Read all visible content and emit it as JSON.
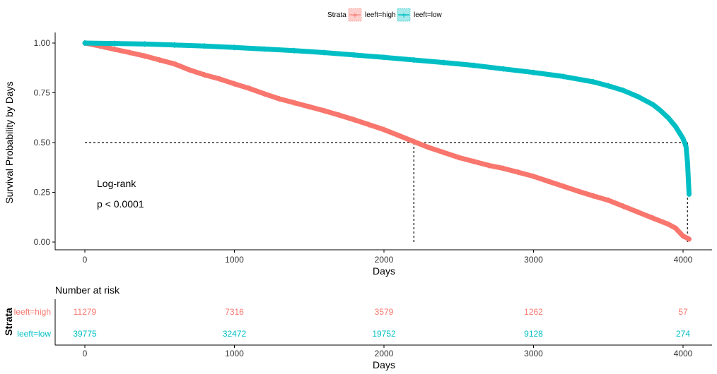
{
  "chart_data": [
    {
      "type": "line",
      "subtype": "kaplan-meier",
      "title": "",
      "xlabel": "Days",
      "ylabel": "Survival Probability by Days",
      "xlim": [
        0,
        4000
      ],
      "ylim": [
        0,
        1
      ],
      "xticks": [
        "0",
        "1000",
        "2000",
        "3000",
        "4000"
      ],
      "yticks": [
        "0.00",
        "0.25",
        "0.50",
        "0.75",
        "1.00"
      ],
      "legend": {
        "title": "Strata",
        "position": "top",
        "entries": [
          "leeft=high",
          "leeft=low"
        ]
      },
      "colors": {
        "high": "#F8766D",
        "low": "#00BFC4"
      },
      "annotations": [
        "Log-rank",
        "p < 0.0001"
      ],
      "median_line": {
        "y": 0.5,
        "median_high_days": 2200,
        "median_low_days": 4030
      },
      "series": [
        {
          "name": "leeft=high",
          "x": [
            0,
            100,
            200,
            300,
            400,
            500,
            600,
            700,
            800,
            900,
            1000,
            1100,
            1200,
            1300,
            1400,
            1500,
            1600,
            1700,
            1800,
            1900,
            2000,
            2100,
            2200,
            2300,
            2400,
            2500,
            2600,
            2700,
            2800,
            2900,
            3000,
            3100,
            3200,
            3300,
            3400,
            3500,
            3600,
            3700,
            3800,
            3900,
            3950,
            4000,
            4040
          ],
          "values": [
            1.0,
            0.985,
            0.968,
            0.952,
            0.935,
            0.915,
            0.895,
            0.865,
            0.84,
            0.82,
            0.795,
            0.772,
            0.745,
            0.72,
            0.7,
            0.68,
            0.66,
            0.638,
            0.615,
            0.59,
            0.565,
            0.535,
            0.505,
            0.475,
            0.45,
            0.425,
            0.405,
            0.385,
            0.37,
            0.35,
            0.33,
            0.305,
            0.28,
            0.255,
            0.232,
            0.21,
            0.18,
            0.15,
            0.12,
            0.09,
            0.07,
            0.03,
            0.015
          ]
        },
        {
          "name": "leeft=low",
          "x": [
            0,
            200,
            400,
            600,
            800,
            1000,
            1200,
            1400,
            1600,
            1800,
            2000,
            2200,
            2400,
            2600,
            2800,
            3000,
            3200,
            3400,
            3500,
            3600,
            3700,
            3800,
            3850,
            3900,
            3950,
            4000,
            4020,
            4030,
            4040
          ],
          "values": [
            1.0,
            0.998,
            0.995,
            0.99,
            0.985,
            0.978,
            0.97,
            0.962,
            0.952,
            0.94,
            0.928,
            0.915,
            0.902,
            0.888,
            0.87,
            0.852,
            0.832,
            0.805,
            0.785,
            0.762,
            0.73,
            0.69,
            0.66,
            0.625,
            0.58,
            0.52,
            0.48,
            0.4,
            0.24
          ]
        }
      ]
    },
    {
      "type": "table",
      "title": "Number at risk",
      "xlabel": "Days",
      "ylabel": "Strata",
      "xticks": [
        "0",
        "1000",
        "2000",
        "3000",
        "4000"
      ],
      "rows": [
        {
          "name": "leeft=high",
          "values": [
            "11279",
            "7316",
            "3579",
            "1262",
            "57"
          ]
        },
        {
          "name": "leeft=low",
          "values": [
            "39775",
            "32472",
            "19752",
            "9128",
            "274"
          ]
        }
      ]
    }
  ]
}
